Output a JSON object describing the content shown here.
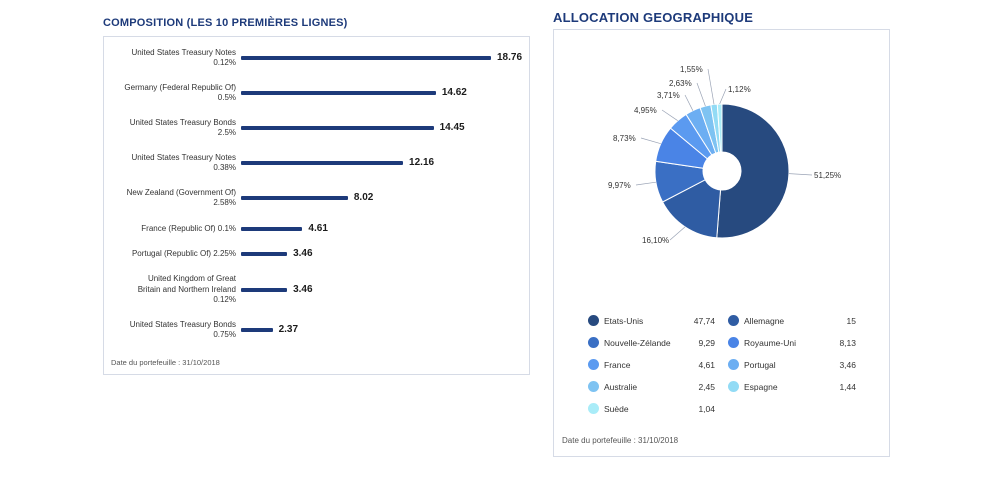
{
  "composition": {
    "title": "COMPOSITION (LES 10 PREMIÈRES LIGNES)",
    "footer": "Date du portefeuille : 31/10/2018",
    "bar_color": "#1d3a7a",
    "chart_data": {
      "type": "bar",
      "orientation": "horizontal",
      "categories": [
        [
          "United States Treasury Notes",
          "0.12%"
        ],
        [
          "Germany (Federal Republic Of)",
          "0.5%"
        ],
        [
          "United States Treasury Bonds",
          "2.5%"
        ],
        [
          "United States Treasury Notes",
          "0.38%"
        ],
        [
          "New Zealand (Government Of)",
          "2.58%"
        ],
        [
          "France (Republic Of) 0.1%"
        ],
        [
          "Portugal (Republic Of) 2.25%"
        ],
        [
          "United Kingdom of Great",
          "Britain and Northern Ireland",
          "0.12%"
        ],
        [
          "United States Treasury Bonds",
          "0.75%"
        ]
      ],
      "values": [
        18.76,
        14.62,
        14.45,
        12.16,
        8.02,
        4.61,
        3.46,
        3.46,
        2.37
      ],
      "value_labels": [
        "18.76",
        "14.62",
        "14.45",
        "12.16",
        "8.02",
        "4.61",
        "3.46",
        "3.46",
        "2.37"
      ]
    }
  },
  "geo": {
    "title": "ALLOCATION GEOGRAPHIQUE",
    "footer": "Date du portefeuille : 31/10/2018",
    "chart_data": {
      "type": "pie",
      "hole": true,
      "slices": [
        {
          "label": "51,25%",
          "value": 51.25,
          "color": "#274a7f"
        },
        {
          "label": "16,10%",
          "value": 16.1,
          "color": "#2f5ca3"
        },
        {
          "label": "9,97%",
          "value": 9.97,
          "color": "#3a6fc4"
        },
        {
          "label": "8,73%",
          "value": 8.73,
          "color": "#4a84e6"
        },
        {
          "label": "4,95%",
          "value": 4.95,
          "color": "#5b9af0"
        },
        {
          "label": "3,71%",
          "value": 3.71,
          "color": "#6caef2"
        },
        {
          "label": "2,63%",
          "value": 2.63,
          "color": "#7ec3f2"
        },
        {
          "label": "1,55%",
          "value": 1.55,
          "color": "#92dbf5"
        },
        {
          "label": "1,12%",
          "value": 1.12,
          "color": "#a9ecf8"
        }
      ]
    },
    "legend": [
      {
        "name": "Etats-Unis",
        "value": "47,74",
        "color": "#274a7f"
      },
      {
        "name": "Allemagne",
        "value": "15",
        "color": "#2f5ca3"
      },
      {
        "name": "Nouvelle-Zélande",
        "value": "9,29",
        "color": "#3a6fc4"
      },
      {
        "name": "Royaume-Uni",
        "value": "8,13",
        "color": "#4a84e6"
      },
      {
        "name": "France",
        "value": "4,61",
        "color": "#5b9af0"
      },
      {
        "name": "Portugal",
        "value": "3,46",
        "color": "#6caef2"
      },
      {
        "name": "Australie",
        "value": "2,45",
        "color": "#7ec3f2"
      },
      {
        "name": "Espagne",
        "value": "1,44",
        "color": "#92dbf5"
      },
      {
        "name": "Suède",
        "value": "1,04",
        "color": "#a9ecf8"
      }
    ]
  }
}
